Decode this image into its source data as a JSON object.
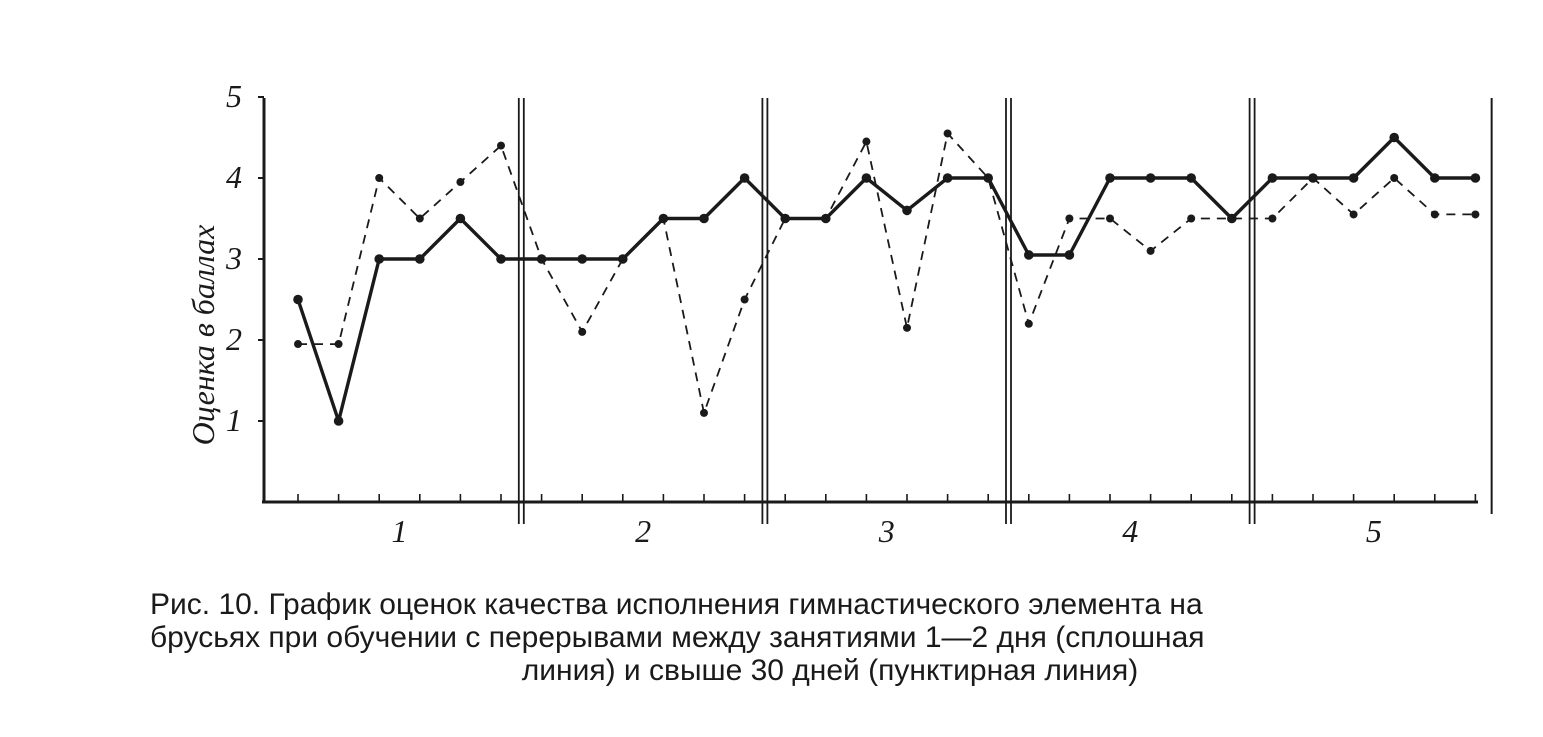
{
  "chart_data": {
    "type": "line",
    "ylabel": "Оценка в баллах",
    "yticks": [
      "1",
      "2",
      "3",
      "4",
      "5"
    ],
    "ylim": [
      0,
      5
    ],
    "sessions": [
      "1",
      "2",
      "3",
      "4",
      "5"
    ],
    "attempts_per_session": 6,
    "grid": false,
    "series": [
      {
        "style": "solid",
        "values": [
          2.5,
          1,
          3,
          3,
          3.5,
          3,
          3,
          3,
          3,
          3.5,
          3.5,
          4,
          3.5,
          3.5,
          4,
          3.6,
          4,
          4,
          3.05,
          3.05,
          4,
          4,
          4,
          3.5,
          4,
          4,
          4,
          4.5,
          4,
          4
        ]
      },
      {
        "style": "dashed",
        "values": [
          1.95,
          1.95,
          4,
          3.5,
          3.95,
          4.4,
          3,
          2.1,
          3,
          3.5,
          1.1,
          2.5,
          3.5,
          3.5,
          4.45,
          2.15,
          4.55,
          4,
          2.2,
          3.5,
          3.5,
          3.1,
          3.5,
          3.5,
          3.5,
          4,
          3.55,
          4,
          3.55,
          3.55
        ]
      }
    ]
  },
  "caption": {
    "line1": "Рис. 10. График оценок качества исполнения гимнастического элемента на",
    "line2": "брусьях при обучении с перерывами между занятиями 1—2 дня (сплошная",
    "line3": "линия) и свыше 30 дней (пунктирная линия)"
  },
  "colors": {
    "ink": "#1a1a1a",
    "paper": "#ffffff"
  }
}
